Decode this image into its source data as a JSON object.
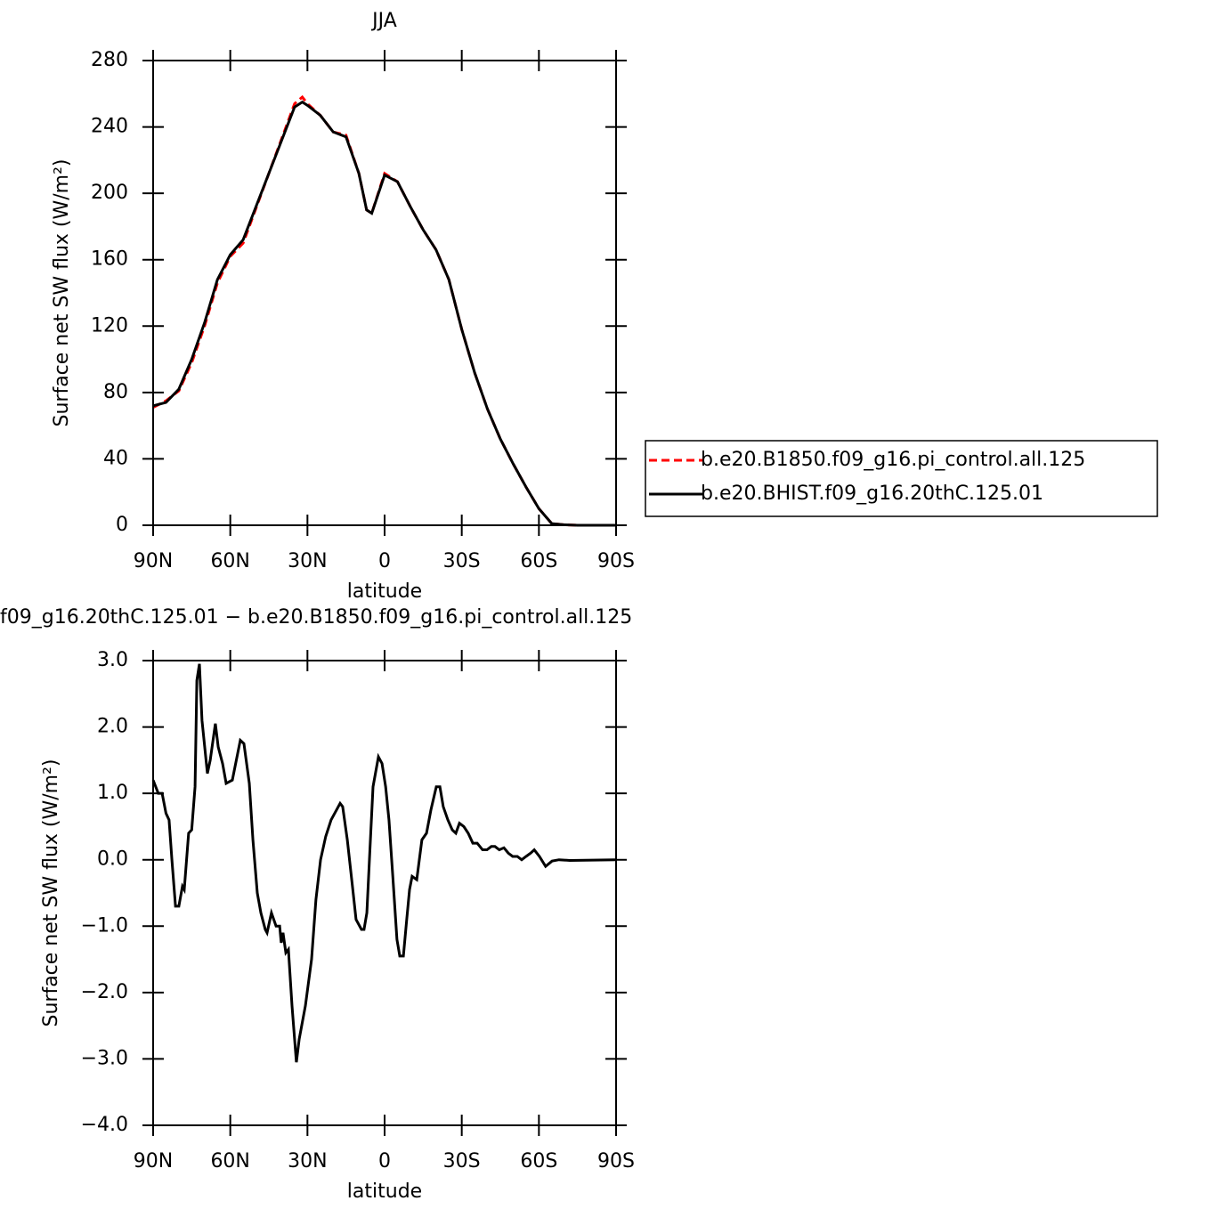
{
  "chart_data": [
    {
      "type": "line",
      "title": "JJA",
      "xlabel": "latitude",
      "ylabel": "Surface net SW flux (W/m²)",
      "x": [
        90,
        85,
        80,
        75,
        70,
        65,
        60,
        55,
        50,
        45,
        40,
        35,
        32,
        30,
        25,
        20,
        15,
        10,
        7,
        5,
        0,
        -5,
        -10,
        -15,
        -20,
        -25,
        -30,
        -35,
        -40,
        -45,
        -50,
        -55,
        -60,
        -65,
        -70,
        -75,
        -80,
        -85,
        -90
      ],
      "series": [
        {
          "name": "b.e20.B1850.f09_g16.pi_control.all.125",
          "color": "#ff0000",
          "linestyle": "dashed",
          "values": [
            71,
            75,
            81,
            98,
            120,
            146,
            162,
            170,
            191,
            212,
            233,
            254,
            258,
            254,
            247,
            237,
            235,
            212,
            190,
            188,
            212,
            207,
            192,
            178,
            166,
            148,
            118,
            92,
            70,
            52,
            37,
            23,
            10,
            1,
            0.3,
            0,
            0,
            0,
            0
          ]
        },
        {
          "name": "b.e20.BHIST.f09_g16.20thC.125.01",
          "color": "#000000",
          "linestyle": "solid",
          "values": [
            72,
            74,
            82,
            100,
            122,
            148,
            163,
            172,
            192,
            212,
            232,
            252,
            255,
            253,
            247,
            237,
            234,
            212,
            190,
            188,
            211,
            207,
            192,
            178,
            166,
            148,
            118,
            92,
            70,
            52,
            37,
            23,
            10,
            1,
            0.3,
            0,
            0,
            0,
            0
          ]
        }
      ],
      "xlim": [
        90,
        -90
      ],
      "xticks": [
        {
          "value": 90,
          "label": "90N"
        },
        {
          "value": 60,
          "label": "60N"
        },
        {
          "value": 30,
          "label": "30N"
        },
        0,
        {
          "value": -30,
          "label": "30S"
        },
        {
          "value": -60,
          "label": "60S"
        },
        {
          "value": -90,
          "label": "90S"
        }
      ],
      "ylim": [
        0,
        280
      ],
      "yticks": [
        0,
        40,
        80,
        120,
        160,
        200,
        240,
        280
      ],
      "grid": false,
      "legend": "right"
    },
    {
      "type": "line",
      "title": "f09_g16.20thC.125.01 − b.e20.B1850.f09_g16.pi_control.all.125",
      "xlabel": "latitude",
      "ylabel": "Surface net SW flux (W/m²)",
      "x": [
        90,
        88,
        86.5,
        85,
        83.8,
        82.7,
        81.3,
        80,
        78.6,
        77.9,
        76.2,
        75,
        73.7,
        73,
        72,
        71,
        68.9,
        67.8,
        65.8,
        64.7,
        63,
        61.6,
        59.2,
        56.1,
        54.7,
        52.6,
        51.2,
        49.5,
        48.1,
        46.4,
        45.7,
        44,
        42.2,
        40.8,
        40.2,
        39.5,
        38.4,
        37.4,
        36,
        34.3,
        33.2,
        30.8,
        28.4,
        26.7,
        24.9,
        22.9,
        20.8,
        18.7,
        17.3,
        16.3,
        14.5,
        12.5,
        11.1,
        9,
        8,
        6.9,
        5.9,
        4.5,
        2.4,
        1,
        -0.4,
        -1.7,
        -3.1,
        -4.8,
        -5.9,
        -7.3,
        -8.6,
        -9.7,
        -10.7,
        -12.5,
        -13.5,
        -14.5,
        -16.3,
        -18,
        -20.1,
        -21.5,
        -22.8,
        -24.6,
        -26.3,
        -27.7,
        -29.1,
        -30.8,
        -32.5,
        -34.3,
        -36,
        -38.1,
        -39.8,
        -41.5,
        -42.9,
        -44.6,
        -46.4,
        -48.1,
        -49.8,
        -51.6,
        -53.3,
        -55,
        -56.8,
        -58.2,
        -60.2,
        -62.6,
        -65.1,
        -67.8,
        -72,
        -90
      ],
      "series": [
        {
          "name": "difference",
          "color": "#000000",
          "linestyle": "solid",
          "values": [
            1.2,
            1.0,
            1.0,
            0.7,
            0.6,
            0.0,
            -0.7,
            -0.7,
            -0.4,
            -0.45,
            0.4,
            0.45,
            1.1,
            2.7,
            2.95,
            2.1,
            1.3,
            1.5,
            2.05,
            1.7,
            1.45,
            1.15,
            1.2,
            1.8,
            1.75,
            1.15,
            0.3,
            -0.5,
            -0.8,
            -1.05,
            -1.1,
            -0.8,
            -1.0,
            -1.0,
            -1.25,
            -1.1,
            -1.4,
            -1.35,
            -2.2,
            -3.05,
            -2.7,
            -2.2,
            -1.5,
            -0.6,
            0.0,
            0.35,
            0.6,
            0.75,
            0.85,
            0.8,
            0.3,
            -0.4,
            -0.9,
            -1.05,
            -1.05,
            -0.8,
            0.0,
            1.1,
            1.55,
            1.45,
            1.1,
            0.6,
            -0.2,
            -1.2,
            -1.45,
            -1.45,
            -0.9,
            -0.45,
            -0.25,
            -0.3,
            0.0,
            0.3,
            0.4,
            0.75,
            1.1,
            1.1,
            0.8,
            0.6,
            0.45,
            0.4,
            0.55,
            0.5,
            0.4,
            0.25,
            0.25,
            0.15,
            0.15,
            0.2,
            0.2,
            0.15,
            0.18,
            0.1,
            0.05,
            0.05,
            0.0,
            0.05,
            0.1,
            0.15,
            0.05,
            -0.1,
            -0.02,
            0.0,
            -0.01,
            0
          ]
        }
      ],
      "xlim": [
        90,
        -90
      ],
      "xticks": [
        {
          "value": 90,
          "label": "90N"
        },
        {
          "value": 60,
          "label": "60N"
        },
        {
          "value": 30,
          "label": "30N"
        },
        0,
        {
          "value": -30,
          "label": "30S"
        },
        {
          "value": -60,
          "label": "60S"
        },
        {
          "value": -90,
          "label": "90S"
        }
      ],
      "ylim": [
        -4,
        3
      ],
      "yticks": [
        {
          "value": -4,
          "label": "−4.0"
        },
        {
          "value": -3,
          "label": "−3.0"
        },
        {
          "value": -2,
          "label": "−2.0"
        },
        {
          "value": -1,
          "label": "−1.0"
        },
        {
          "value": 0,
          "label": "0.0"
        },
        {
          "value": 1,
          "label": "1.0"
        },
        {
          "value": 2,
          "label": "2.0"
        },
        {
          "value": 3,
          "label": "3.0"
        }
      ],
      "grid": false
    }
  ]
}
